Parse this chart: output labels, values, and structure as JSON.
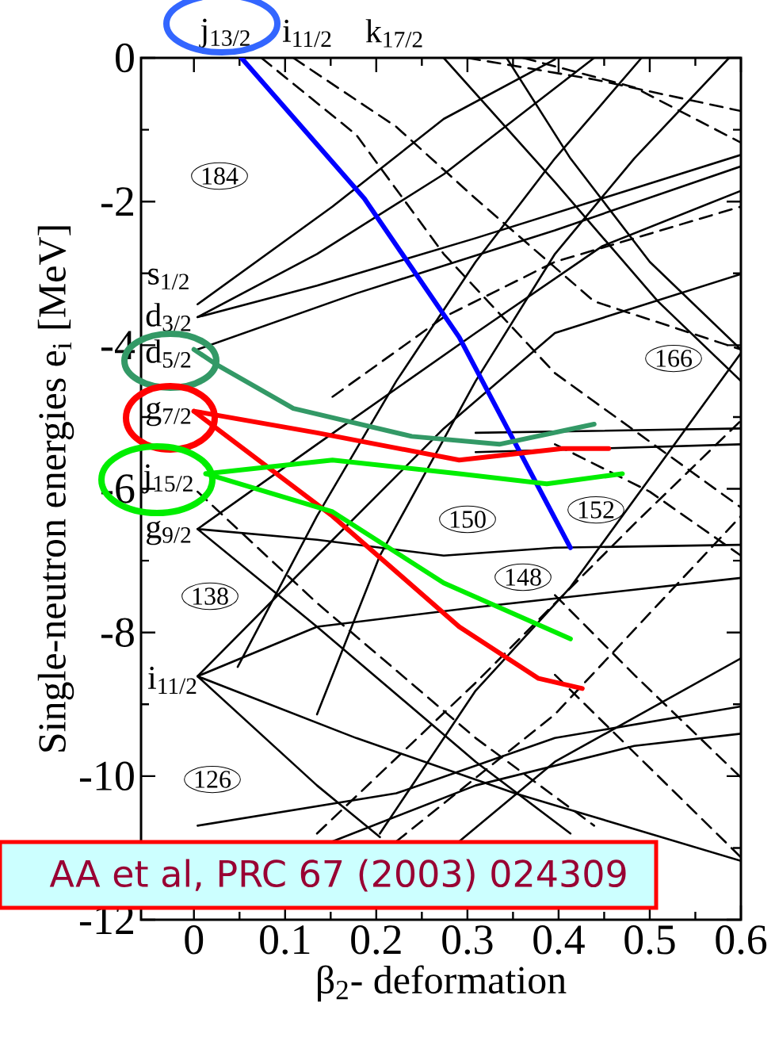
{
  "chart_data": {
    "type": "line",
    "xlabel": "β$_{2}$- deformation",
    "ylabel": "Single-neutron energies e$_{i}$ [MeV]",
    "xlim": [
      -0.058,
      0.6
    ],
    "ylim": [
      -12,
      0
    ],
    "xticks": [
      0,
      0.1,
      0.2,
      0.3,
      0.4,
      0.5,
      0.6
    ],
    "yticks": [
      -12,
      -10,
      -8,
      -6,
      -4,
      -2,
      0
    ],
    "annotations": [
      "AA et al, PRC 67 (2003) 024309",
      "j$_{13/2}$",
      "i$_{11/2}$",
      "k$_{17/2}$",
      "s$_{1/2}$",
      "d$_{3/2}$",
      "d$_{5/2}$",
      "g$_{7/2}$",
      "j$_{15/2}$",
      "g$_{9/2}$",
      "i$_{11/2}$",
      "184",
      "138",
      "126",
      "150",
      "148",
      "152",
      "166"
    ],
    "series": [
      {
        "color": "#000000",
        "x": [
          0.004,
          0.152,
          0.274,
          0.396
        ],
        "values": [
          -3.43,
          -2.07,
          -0.85,
          -0.02
        ]
      },
      {
        "color": "#000000",
        "x": [
          0.004,
          0.135,
          0.274,
          0.439
        ],
        "values": [
          -3.61,
          -2.73,
          -1.62,
          0
        ]
      },
      {
        "color": "#000000",
        "x": [
          0.004,
          0.135,
          0.309,
          0.6
        ],
        "values": [
          -3.61,
          -3.17,
          -2.51,
          -1.35
        ]
      },
      {
        "color": "#000000",
        "x": [
          0.004,
          0.178,
          0.396,
          0.6
        ],
        "values": [
          -4.06,
          -3.28,
          -2.4,
          -1.51
        ]
      },
      {
        "color": "#000000",
        "x": [
          0.004,
          0.135,
          0.274,
          0.396,
          0.6
        ],
        "values": [
          -6.56,
          -6.71,
          -6.93,
          -6.82,
          -6.78
        ]
      },
      {
        "color": "#000000",
        "x": [
          0.004,
          0.135,
          0.309,
          0.448,
          0.6
        ],
        "values": [
          -6.56,
          -5.38,
          -3.83,
          -2.62,
          -1.85
        ]
      },
      {
        "color": "#000000",
        "x": [
          0.004,
          0.135,
          0.309,
          0.413
        ],
        "values": [
          -6.56,
          -7.92,
          -9.8,
          -10.8
        ]
      },
      {
        "color": "#000000",
        "x": [
          0.004,
          0.135,
          0.274,
          0.396,
          0.6
        ],
        "values": [
          -8.61,
          -6.93,
          -5.16,
          -3.83,
          -3.01
        ]
      },
      {
        "color": "#000000",
        "x": [
          0.004,
          0.135,
          0.309,
          0.6
        ],
        "values": [
          -8.61,
          -7.92,
          -7.65,
          -7.24
        ]
      },
      {
        "color": "#000000",
        "x": [
          0.004,
          0.178,
          0.352,
          0.6
        ],
        "values": [
          -8.61,
          -9.47,
          -10.24,
          -11.18
        ]
      },
      {
        "color": "#000000",
        "x": [
          0.004,
          0.135,
          0.204
        ],
        "values": [
          -8.61,
          -10.13,
          -10.85
        ]
      },
      {
        "color": "#000000",
        "x": [
          0.343,
          0.413,
          0.5,
          0.6
        ],
        "values": [
          0,
          -1.4,
          -2.84,
          -4.06
        ]
      },
      {
        "color": "#000000",
        "x": [
          0.274,
          0.396,
          0.509,
          0.6
        ],
        "values": [
          0,
          -1.73,
          -3.39,
          -4.5
        ]
      },
      {
        "color": "#000000",
        "x": [
          0.048,
          0.135,
          0.222,
          0.309,
          0.396,
          0.491
        ],
        "values": [
          -8.48,
          -6.38,
          -4.5,
          -2.84,
          -1.4,
          0
        ]
      },
      {
        "color": "#000000",
        "x": [
          0.135,
          0.204,
          0.309,
          0.396,
          0.483,
          0.587
        ],
        "values": [
          -9.14,
          -6.93,
          -4.5,
          -2.73,
          -1.4,
          0
        ]
      },
      {
        "color": "#000000",
        "x": [
          0.291,
          0.396,
          0.6
        ],
        "values": [
          -10.91,
          -9.8,
          -8.36
        ]
      },
      {
        "color": "#000000",
        "x": [
          0.204,
          0.309,
          0.413,
          0.6
        ],
        "values": [
          -10.8,
          -8.81,
          -7.37,
          -4.11
        ]
      },
      {
        "color": "#000000",
        "x": [
          0.309,
          0.6
        ],
        "values": [
          -5.22,
          -5.16
        ]
      },
      {
        "color": "#000000",
        "x": [
          0.309,
          0.6
        ],
        "values": [
          -5.49,
          -5.38
        ]
      },
      {
        "color": "#000000",
        "x": [
          0.004,
          0.222,
          0.396,
          0.6
        ],
        "values": [
          -10.69,
          -10.24,
          -9.47,
          -9.03
        ]
      },
      {
        "color": "#000000",
        "x": [
          0.152,
          0.309,
          0.483,
          0.6
        ],
        "values": [
          -10.91,
          -10.13,
          -9.58,
          -9.41
        ]
      },
      {
        "color": "#000000",
        "line_style": "dashed",
        "x": [
          0.074,
          0.178,
          0.274,
          0.396,
          0.6
        ],
        "values": [
          0,
          -1.07,
          -2.73,
          -4.39,
          -6.26
        ]
      },
      {
        "color": "#000000",
        "line_style": "dashed",
        "x": [
          0.109,
          0.222,
          0.309,
          0.439,
          0.6
        ],
        "values": [
          0,
          -0.96,
          -1.96,
          -3.39,
          -4.06
        ]
      },
      {
        "color": "#000000",
        "line_style": "dashed",
        "x": [
          0.3,
          0.439,
          0.6
        ],
        "values": [
          0,
          -0.3,
          -0.74
        ]
      },
      {
        "color": "#000000",
        "line_style": "dashed",
        "x": [
          0.361,
          0.483,
          0.6
        ],
        "values": [
          0,
          -0.41,
          -1.18
        ]
      },
      {
        "color": "#000000",
        "line_style": "dashed",
        "x": [
          0.152,
          0.274,
          0.396,
          0.6
        ],
        "values": [
          -4.72,
          -3.61,
          -2.84,
          -2.07
        ]
      },
      {
        "color": "#000000",
        "line_style": "dashed",
        "x": [
          0.004,
          0.135,
          0.309,
          0.439
        ],
        "values": [
          -6.04,
          -7.59,
          -9.47,
          -10.69
        ]
      },
      {
        "color": "#000000",
        "line_style": "dashed",
        "x": [
          0.135,
          0.309,
          0.483,
          0.6
        ],
        "values": [
          -10.8,
          -8.7,
          -6.49,
          -5.05
        ]
      },
      {
        "color": "#000000",
        "line_style": "dashed",
        "x": [
          0.222,
          0.396,
          0.6
        ],
        "values": [
          -10.91,
          -9.14,
          -6.38
        ]
      },
      {
        "color": "#000000",
        "line_style": "dashed",
        "x": [
          0.396,
          0.483,
          0.6
        ],
        "values": [
          -7.48,
          -8.59,
          -10.02
        ]
      },
      {
        "color": "#000000",
        "line_style": "dashed",
        "x": [
          0.396,
          0.6
        ],
        "values": [
          -8.59,
          -11.13
        ]
      },
      {
        "color": "#000000",
        "line_style": "dashed",
        "x": [
          0.396,
          0.5,
          0.6
        ],
        "values": [
          -5.38,
          -6.04,
          -6.93
        ]
      },
      {
        "color": "#0000ff",
        "x": [
          0.052,
          0.187,
          0.291,
          0.413
        ],
        "values": [
          0,
          -1.96,
          -3.89,
          -6.82
        ]
      },
      {
        "color": "#339966",
        "x": [
          0,
          0.026,
          0.109,
          0.239,
          0.335,
          0.439
        ],
        "values": [
          -4.06,
          -4.28,
          -4.88,
          -5.27,
          -5.38,
          -5.1
        ]
      },
      {
        "color": "#ff0000",
        "x": [
          0,
          0.135,
          0.291,
          0.404,
          0.455
        ],
        "values": [
          -4.92,
          -5.22,
          -5.6,
          -5.44,
          -5.44
        ]
      },
      {
        "color": "#ff0000",
        "x": [
          0,
          0.152,
          0.291,
          0.378,
          0.426
        ],
        "values": [
          -4.92,
          -6.38,
          -7.92,
          -8.64,
          -8.78
        ]
      },
      {
        "color": "#00ee00",
        "x": [
          0.013,
          0.152,
          0.291,
          0.387,
          0.47
        ],
        "values": [
          -5.79,
          -5.6,
          -5.79,
          -5.93,
          -5.79
        ]
      },
      {
        "color": "#00ee00",
        "x": [
          0.013,
          0.152,
          0.274,
          0.413
        ],
        "values": [
          -5.79,
          -6.32,
          -7.31,
          -8.09
        ]
      }
    ]
  }
}
